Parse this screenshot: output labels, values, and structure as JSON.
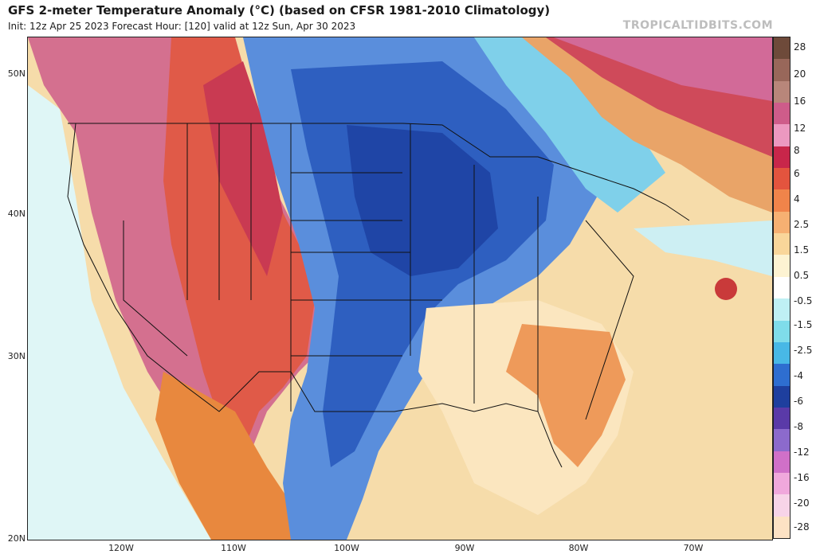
{
  "header": {
    "title": "GFS 2-meter Temperature Anomaly (°C) (based on CFSR 1981-2010 Climatology)",
    "subtitle": "Init: 12z Apr 25 2023   Forecast Hour: [120]   valid at 12z Sun, Apr 30 2023",
    "brand": "TROPICALTIDBITS.COM"
  },
  "axes": {
    "latitudes": [
      "50N",
      "40N",
      "30N",
      "20N"
    ],
    "longitudes": [
      "120W",
      "110W",
      "100W",
      "90W",
      "80W",
      "70W"
    ]
  },
  "colorbar": {
    "labels": [
      "28",
      "20",
      "16",
      "12",
      "8",
      "6",
      "4",
      "2.5",
      "1.5",
      "0.5",
      "-0.5",
      "-1.5",
      "-2.5",
      "-4",
      "-6",
      "-8",
      "-12",
      "-16",
      "-20",
      "-28"
    ],
    "colors": [
      "#6e4a3a",
      "#98675a",
      "#b8867a",
      "#ce5c8a",
      "#ec98c0",
      "#c8264a",
      "#e3543e",
      "#f0844a",
      "#f6b072",
      "#f9d69a",
      "#fdf3d2",
      "#ffffff",
      "#bff0f4",
      "#7fdcea",
      "#48b8e6",
      "#2e6ed0",
      "#1e3f9e",
      "#5a3aa8",
      "#8c6acc",
      "#d070c8",
      "#f0a8dc",
      "#f7d4e8",
      "#fde2c4"
    ]
  },
  "regions": {
    "west_warm": "Warm anomaly over western US and Canada",
    "central_cold": "Cold anomaly over Plains, Midwest and Great Lakes",
    "southeast_warm": "Mild warm anomaly over Southeast and Gulf",
    "northeast_canada_warm": "Strong warm anomaly over Quebec"
  }
}
